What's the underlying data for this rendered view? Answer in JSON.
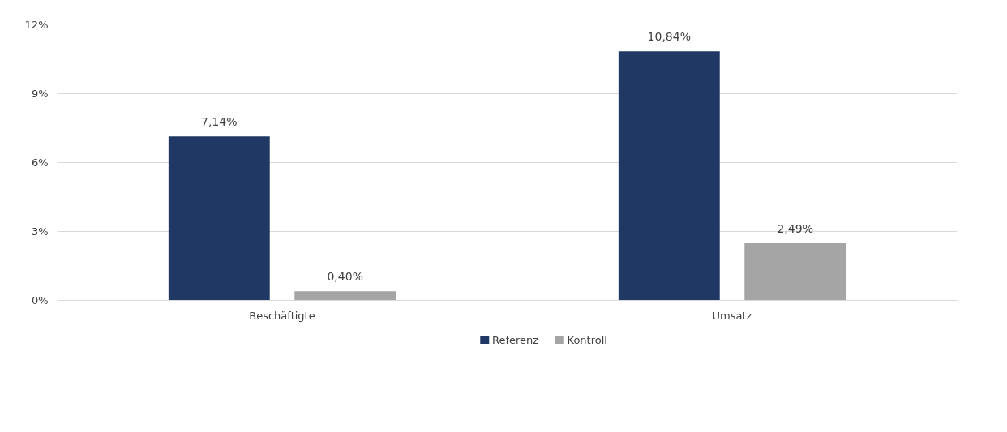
{
  "chart_data": {
    "type": "bar",
    "categories": [
      "Beschäftigte",
      "Umsatz"
    ],
    "series": [
      {
        "name": "Referenz",
        "color": "#1f3864",
        "values": [
          7.14,
          10.84
        ],
        "value_labels": [
          "7,14%",
          "10,84%"
        ]
      },
      {
        "name": "Kontroll",
        "color": "#a5a5a5",
        "values": [
          0.4,
          2.49
        ],
        "value_labels": [
          "0,40%",
          "2,49%"
        ]
      }
    ],
    "ylim": [
      0,
      12
    ],
    "yticks": [
      {
        "value": 0,
        "label": "0%"
      },
      {
        "value": 3,
        "label": "3%"
      },
      {
        "value": 6,
        "label": "6%"
      },
      {
        "value": 9,
        "label": "9%"
      },
      {
        "value": 12,
        "label": "12%"
      }
    ],
    "grid": "y",
    "legend": "bottom"
  }
}
